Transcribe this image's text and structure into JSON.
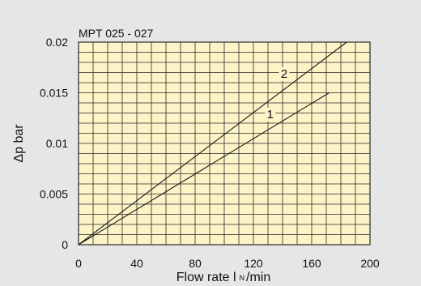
{
  "chart_data": {
    "type": "line",
    "title": "MPT 025 - 027",
    "xlabel": "Flow rate l",
    "xlabel_sub": "N",
    "xlabel_unit": "/min",
    "ylabel": "Δp bar",
    "xlim": [
      0,
      200
    ],
    "ylim": [
      0,
      0.02
    ],
    "x_ticks": [
      0,
      40,
      80,
      120,
      160,
      200
    ],
    "x_tick_labels": [
      "0",
      "40",
      "80",
      "120",
      "160",
      "200"
    ],
    "y_ticks": [
      0,
      0.005,
      0.01,
      0.015,
      0.02
    ],
    "y_tick_labels": [
      "0",
      "0.005",
      "0.01",
      "0.015",
      "0.02"
    ],
    "grid": true,
    "grid_x_step": 10,
    "grid_y_step": 0.001,
    "colors": {
      "background": "#e6e6e6",
      "plot_fill": "#fcf3c7",
      "grid": "#2a2a2a",
      "line": "#1a1a1a",
      "text": "#111111"
    },
    "series": [
      {
        "name": "2",
        "x": [
          0,
          184
        ],
        "y": [
          0,
          0.02
        ]
      },
      {
        "name": "1",
        "x": [
          0,
          172
        ],
        "y": [
          0,
          0.015
        ]
      }
    ]
  }
}
